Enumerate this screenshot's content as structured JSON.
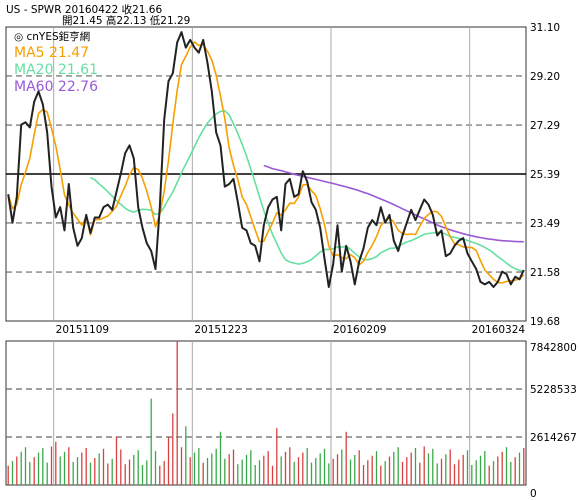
{
  "header": {
    "line1": "US - SPWR  20160422  收21.66",
    "line2": "開21.45  高22.13  低21.29",
    "watermark": "◎ cnYES鉅亨網"
  },
  "legend": {
    "ma5": "MA5 21.47",
    "ma20": "MA20 21.61",
    "ma60": "MA60 22.76"
  },
  "colors": {
    "price": "#222222",
    "ma5": "#f5a000",
    "ma20": "#66e0a0",
    "ma60": "#9b59d6",
    "up": "#d94040",
    "down": "#3aa84a",
    "grid": "#9a9a9a"
  },
  "chart_data": [
    {
      "type": "line",
      "panel": "price",
      "ylim": [
        19.68,
        31.1
      ],
      "yticks": [
        "31.10",
        "29.20",
        "27.29",
        "25.39",
        "23.49",
        "21.58",
        "19.68"
      ],
      "xticks": [
        "20151109",
        "20151223",
        "20160209",
        "20160324"
      ],
      "reference_line": 25.39,
      "n": 120,
      "series": [
        {
          "name": "close",
          "values": [
            24.6,
            23.5,
            24.5,
            27.3,
            27.4,
            27.2,
            28.2,
            28.6,
            28.1,
            27.0,
            24.9,
            23.7,
            24.1,
            23.2,
            25.0,
            23.3,
            22.6,
            22.9,
            23.8,
            23.1,
            23.7,
            23.7,
            24.1,
            24.2,
            24.0,
            24.7,
            25.4,
            26.2,
            26.5,
            26.0,
            24.1,
            23.3,
            22.7,
            22.4,
            21.7,
            24.1,
            27.5,
            29.0,
            29.3,
            30.5,
            30.9,
            30.3,
            30.6,
            30.3,
            30.1,
            30.6,
            29.7,
            28.6,
            27.0,
            26.5,
            24.9,
            25.0,
            25.2,
            24.3,
            23.3,
            23.2,
            22.7,
            22.6,
            22.0,
            23.4,
            24.1,
            24.4,
            24.5,
            23.2,
            25.0,
            25.2,
            24.5,
            24.6,
            25.5,
            25.1,
            24.3,
            24.0,
            23.3,
            22.1,
            21.0,
            21.9,
            23.4,
            21.6,
            22.6,
            22.0,
            21.1,
            22.0,
            22.5,
            23.3,
            23.6,
            23.4,
            24.1,
            23.5,
            23.8,
            22.8,
            22.4,
            23.0,
            23.5,
            24.0,
            23.6,
            24.0,
            24.4,
            24.2,
            23.8,
            23.0,
            23.2,
            22.2,
            22.3,
            22.6,
            22.8,
            22.9,
            22.3,
            22.0,
            21.7,
            21.2,
            21.1,
            21.2,
            21.0,
            21.2,
            21.6,
            21.5,
            21.1,
            21.4,
            21.3,
            21.66
          ]
        },
        {
          "name": "MA5",
          "values": [
            24.6,
            24.05,
            24.2,
            24.98,
            25.46,
            26.0,
            26.92,
            27.74,
            27.9,
            27.8,
            27.16,
            26.48,
            25.56,
            24.58,
            24.18,
            23.86,
            23.64,
            23.4,
            23.72,
            23.02,
            23.62,
            23.62,
            23.68,
            23.76,
            23.94,
            24.14,
            24.54,
            24.92,
            25.36,
            25.64,
            25.56,
            25.22,
            24.72,
            24.1,
            23.34,
            23.84,
            24.72,
            25.92,
            27.34,
            28.64,
            29.64,
            29.96,
            30.32,
            30.52,
            30.38,
            30.42,
            30.16,
            29.82,
            29.22,
            28.42,
            27.54,
            26.4,
            25.72,
            25.18,
            24.5,
            24.2,
            23.72,
            23.22,
            22.76,
            22.78,
            23.16,
            23.48,
            23.88,
            23.8,
            24.0,
            24.26,
            24.24,
            24.5,
            24.96,
            24.98,
            24.74,
            24.56,
            24.04,
            23.42,
            22.6,
            22.2,
            22.26,
            22.14,
            22.1,
            22.26,
            22.14,
            21.86,
            22.0,
            22.34,
            22.62,
            22.96,
            23.38,
            23.58,
            23.68,
            23.52,
            23.2,
            23.08,
            23.04,
            23.06,
            23.04,
            23.36,
            23.66,
            23.82,
            23.94,
            23.92,
            23.74,
            23.34,
            22.96,
            22.68,
            22.64,
            22.56,
            22.54,
            22.54,
            22.42,
            22.02,
            21.66,
            21.48,
            21.3,
            21.18,
            21.16,
            21.22,
            21.24,
            21.26,
            21.32,
            21.47
          ]
        },
        {
          "name": "MA20",
          "values": [
            null,
            null,
            null,
            null,
            null,
            null,
            null,
            null,
            null,
            null,
            null,
            null,
            null,
            null,
            null,
            null,
            null,
            null,
            null,
            25.25,
            25.17,
            25.0,
            24.86,
            24.7,
            24.53,
            24.35,
            24.21,
            24.06,
            23.96,
            23.91,
            23.98,
            24.02,
            24.01,
            23.98,
            23.82,
            23.86,
            24.11,
            24.42,
            24.69,
            25.06,
            25.44,
            25.77,
            26.11,
            26.46,
            26.8,
            27.11,
            27.37,
            27.57,
            27.73,
            27.82,
            27.85,
            27.68,
            27.34,
            26.96,
            26.54,
            26.09,
            25.58,
            25.05,
            24.5,
            23.97,
            23.49,
            23.04,
            22.69,
            22.32,
            22.06,
            21.97,
            21.93,
            21.89,
            21.92,
            21.98,
            22.07,
            22.21,
            22.36,
            22.46,
            22.46,
            22.49,
            22.56,
            22.55,
            22.58,
            22.46,
            22.31,
            22.17,
            22.06,
            22.06,
            22.1,
            22.18,
            22.33,
            22.41,
            22.5,
            22.51,
            22.57,
            22.67,
            22.75,
            22.8,
            22.88,
            22.96,
            23.05,
            23.08,
            23.1,
            23.12,
            23.12,
            23.05,
            22.96,
            22.93,
            22.89,
            22.86,
            22.81,
            22.75,
            22.69,
            22.62,
            22.54,
            22.44,
            22.32,
            22.18,
            22.06,
            21.93,
            21.8,
            21.71,
            21.65,
            21.61
          ]
        },
        {
          "name": "MA60",
          "values": [
            null,
            null,
            null,
            null,
            null,
            null,
            null,
            null,
            null,
            null,
            null,
            null,
            null,
            null,
            null,
            null,
            null,
            null,
            null,
            null,
            null,
            null,
            null,
            null,
            null,
            null,
            null,
            null,
            null,
            null,
            null,
            null,
            null,
            null,
            null,
            null,
            null,
            null,
            null,
            null,
            null,
            null,
            null,
            null,
            null,
            null,
            null,
            null,
            null,
            null,
            null,
            null,
            null,
            null,
            null,
            null,
            null,
            null,
            null,
            25.72,
            25.66,
            25.6,
            25.56,
            25.52,
            25.47,
            25.43,
            25.38,
            25.34,
            25.3,
            25.26,
            25.22,
            25.18,
            25.14,
            25.1,
            25.06,
            25.02,
            24.98,
            24.93,
            24.89,
            24.84,
            24.79,
            24.74,
            24.68,
            24.63,
            24.56,
            24.49,
            24.42,
            24.35,
            24.28,
            24.2,
            24.12,
            24.04,
            23.96,
            23.88,
            23.8,
            23.72,
            23.65,
            23.57,
            23.49,
            23.41,
            23.34,
            23.28,
            23.22,
            23.17,
            23.12,
            23.07,
            23.03,
            22.99,
            22.95,
            22.92,
            22.89,
            22.86,
            22.84,
            22.82,
            22.8,
            22.79,
            22.78,
            22.77,
            22.76,
            22.76
          ]
        }
      ]
    },
    {
      "type": "bar",
      "panel": "volume",
      "ylim": [
        0,
        7842800
      ],
      "yticks": [
        "7842800",
        "5228533",
        "2614267",
        "0"
      ],
      "values": [
        1050000,
        1302000,
        1554000,
        1806000,
        2058000,
        1260000,
        1512000,
        1764000,
        2016000,
        1218000,
        2100000,
        2352000,
        1554000,
        1806000,
        2058000,
        1260000,
        1512000,
        1764000,
        2016000,
        1218000,
        1470000,
        1722000,
        1974000,
        1176000,
        1428000,
        2646000,
        1932000,
        1134000,
        1386000,
        1638000,
        1890000,
        1092000,
        1344000,
        4704000,
        1848000,
        1050000,
        1302000,
        2600000,
        3900000,
        7842800,
        2058000,
        3200000,
        1512000,
        1764000,
        2016000,
        1218000,
        1470000,
        1722000,
        1974000,
        2900000,
        1428000,
        1680000,
        1932000,
        1134000,
        1386000,
        1638000,
        1890000,
        1092000,
        1344000,
        1596000,
        1848000,
        1050000,
        3100000,
        1554000,
        1806000,
        2058000,
        1260000,
        1512000,
        1764000,
        2016000,
        1218000,
        1470000,
        1722000,
        1974000,
        1176000,
        1428000,
        1680000,
        1932000,
        2900000,
        1386000,
        1638000,
        1890000,
        1092000,
        1344000,
        1596000,
        1848000,
        1050000,
        1302000,
        1554000,
        1806000,
        2058000,
        1260000,
        1512000,
        1764000,
        2016000,
        1218000,
        2100000,
        1722000,
        1974000,
        1176000,
        1428000,
        1680000,
        1932000,
        1134000,
        1386000,
        1638000,
        1890000,
        1092000,
        1344000,
        1596000,
        1848000,
        1050000,
        1302000,
        1554000,
        1806000,
        2058000,
        1260000,
        1512000,
        1764000,
        2016000
      ],
      "up": [
        true,
        false,
        true,
        false,
        false,
        false,
        true,
        false,
        false,
        false,
        true,
        true,
        false,
        false,
        true,
        false,
        false,
        true,
        true,
        false,
        true,
        false,
        true,
        true,
        false,
        true,
        true,
        true,
        true,
        false,
        false,
        false,
        false,
        false,
        false,
        true,
        true,
        true,
        true,
        true,
        true,
        false,
        true,
        false,
        false,
        true,
        false,
        false,
        false,
        false,
        false,
        true,
        true,
        false,
        false,
        false,
        false,
        false,
        false,
        true,
        true,
        true,
        true,
        false,
        true,
        true,
        false,
        true,
        true,
        false,
        false,
        false,
        false,
        false,
        false,
        true,
        true,
        false,
        true,
        false,
        false,
        true,
        true,
        true,
        true,
        false,
        true,
        false,
        true,
        false,
        false,
        true,
        true,
        true,
        false,
        true,
        true,
        false,
        false,
        false,
        true,
        false,
        true,
        true,
        true,
        true,
        false,
        false,
        false,
        false,
        false,
        true,
        false,
        true,
        true,
        false,
        false,
        true,
        false,
        true
      ]
    }
  ]
}
